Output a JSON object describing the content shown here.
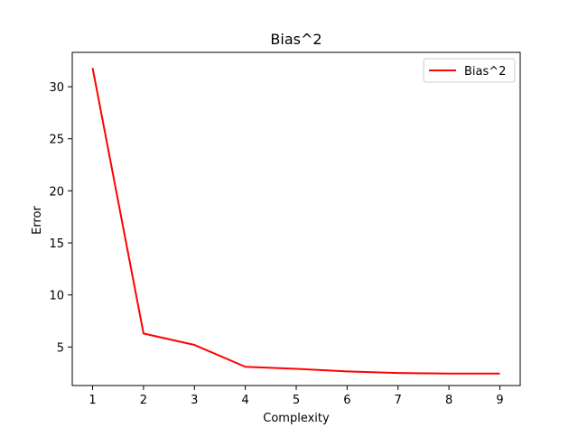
{
  "chart_data": {
    "type": "line",
    "title": "Bias^2",
    "xlabel": "Complexity",
    "ylabel": "Error",
    "xlim": [
      0.6,
      9.4
    ],
    "ylim": [
      1.3,
      33.3
    ],
    "xticks": [
      1,
      2,
      3,
      4,
      5,
      6,
      7,
      8,
      9
    ],
    "yticks": [
      5,
      10,
      15,
      20,
      25,
      30
    ],
    "grid": false,
    "legend_position": "top-right",
    "series": [
      {
        "name": "Bias^2",
        "color": "#ff0000",
        "x": [
          1,
          2,
          3,
          4,
          5,
          6,
          7,
          8,
          9
        ],
        "values": [
          31.8,
          6.3,
          5.2,
          3.1,
          2.9,
          2.65,
          2.5,
          2.45,
          2.45
        ]
      }
    ]
  }
}
